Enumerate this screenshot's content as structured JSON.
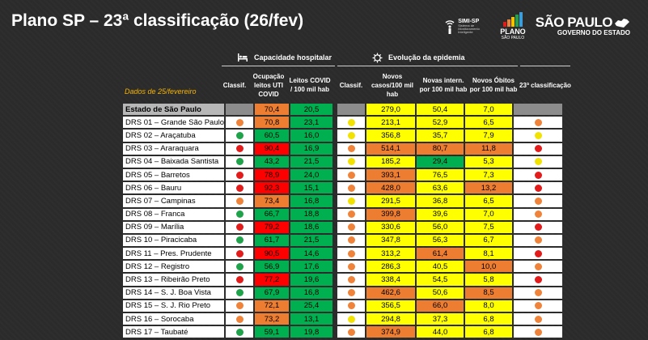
{
  "title": "Plano SP – 23ª classificação (26/fev)",
  "logos": {
    "simi_name": "SIMI-SP",
    "simi_sub": "Sistema de Monitoramento Inteligente",
    "plano_title": "PLANO",
    "plano_sub": "SÃO PAULO",
    "gov_title": "SÃO PAULO",
    "gov_sub": "GOVERNO DO ESTADO"
  },
  "sections": {
    "capacity": "Capacidade hospitalar",
    "evolution": "Evolução da epidemia"
  },
  "date_note": "Dados de 25/fevereiro",
  "headers": {
    "classif1": "Classif.",
    "occupancy": "Ocupação leitos UTI COVID",
    "beds": "Leitos COVID / 100 mil hab",
    "classif2": "Classif.",
    "cases": "Novos casos/100 mil hab",
    "intern": "Novas intern. por 100 mil hab",
    "deaths": "Novos Óbitos por 100 mil hab",
    "class23": "23ª classificação"
  },
  "colors": {
    "red": "#ff0000",
    "orange": "#ed7d31",
    "yellow": "#ffff00",
    "green": "#00b050",
    "white": "#ffffff",
    "dot_red": "#e31b1b",
    "dot_orange": "#f0833a",
    "dot_yellow": "#f2e200",
    "dot_green": "#1fa34a"
  },
  "state_row": {
    "name": "Estado de São Paulo",
    "occupancy": {
      "value": "70,4",
      "color": "orange"
    },
    "beds": {
      "value": "20,5",
      "color": "green"
    },
    "cases": {
      "value": "279,0",
      "color": "yellow"
    },
    "intern": {
      "value": "50,4",
      "color": "yellow"
    },
    "deaths": {
      "value": "7,0",
      "color": "yellow"
    }
  },
  "rows": [
    {
      "name": "DRS 01 – Grande São Paulo",
      "c1": "orange",
      "occ": [
        "70,8",
        "orange"
      ],
      "beds": [
        "23,1",
        "green"
      ],
      "c2": "yellow",
      "cases": [
        "213,1",
        "yellow"
      ],
      "intern": [
        "52,9",
        "yellow"
      ],
      "deaths": [
        "6,5",
        "yellow"
      ],
      "c23": "orange"
    },
    {
      "name": "DRS 02 – Araçatuba",
      "c1": "green",
      "occ": [
        "60,5",
        "green"
      ],
      "beds": [
        "16,0",
        "green"
      ],
      "c2": "yellow",
      "cases": [
        "356,8",
        "yellow"
      ],
      "intern": [
        "35,7",
        "yellow"
      ],
      "deaths": [
        "7,9",
        "yellow"
      ],
      "c23": "yellow"
    },
    {
      "name": "DRS 03 – Araraquara",
      "c1": "red",
      "occ": [
        "90,4",
        "red"
      ],
      "beds": [
        "16,9",
        "green"
      ],
      "c2": "orange",
      "cases": [
        "514,1",
        "orange"
      ],
      "intern": [
        "80,7",
        "orange"
      ],
      "deaths": [
        "11,8",
        "orange"
      ],
      "c23": "red"
    },
    {
      "name": "DRS 04 – Baixada Santista",
      "c1": "green",
      "occ": [
        "43,2",
        "green"
      ],
      "beds": [
        "21,5",
        "green"
      ],
      "c2": "yellow",
      "cases": [
        "185,2",
        "yellow"
      ],
      "intern": [
        "29,4",
        "green"
      ],
      "deaths": [
        "5,3",
        "yellow"
      ],
      "c23": "yellow"
    },
    {
      "name": "DRS 05 – Barretos",
      "c1": "red",
      "occ": [
        "78,9",
        "red"
      ],
      "beds": [
        "24,0",
        "green"
      ],
      "c2": "orange",
      "cases": [
        "393,1",
        "orange"
      ],
      "intern": [
        "76,5",
        "yellow"
      ],
      "deaths": [
        "7,3",
        "yellow"
      ],
      "c23": "red"
    },
    {
      "name": "DRS 06 – Bauru",
      "c1": "red",
      "occ": [
        "92,3",
        "red"
      ],
      "beds": [
        "15,1",
        "green"
      ],
      "c2": "orange",
      "cases": [
        "428,0",
        "orange"
      ],
      "intern": [
        "63,6",
        "yellow"
      ],
      "deaths": [
        "13,2",
        "orange"
      ],
      "c23": "red"
    },
    {
      "name": "DRS 07 – Campinas",
      "c1": "orange",
      "occ": [
        "73,4",
        "orange"
      ],
      "beds": [
        "16,8",
        "green"
      ],
      "c2": "yellow",
      "cases": [
        "291,5",
        "yellow"
      ],
      "intern": [
        "36,8",
        "yellow"
      ],
      "deaths": [
        "6,5",
        "yellow"
      ],
      "c23": "orange"
    },
    {
      "name": "DRS 08 – Franca",
      "c1": "green",
      "occ": [
        "66,7",
        "green"
      ],
      "beds": [
        "18,8",
        "green"
      ],
      "c2": "orange",
      "cases": [
        "399,8",
        "orange"
      ],
      "intern": [
        "39,6",
        "yellow"
      ],
      "deaths": [
        "7,0",
        "yellow"
      ],
      "c23": "orange"
    },
    {
      "name": "DRS 09 – Marília",
      "c1": "red",
      "occ": [
        "79,2",
        "red"
      ],
      "beds": [
        "18,6",
        "green"
      ],
      "c2": "orange",
      "cases": [
        "330,6",
        "yellow"
      ],
      "intern": [
        "56,0",
        "yellow"
      ],
      "deaths": [
        "7,5",
        "yellow"
      ],
      "c23": "red"
    },
    {
      "name": "DRS 10 – Piracicaba",
      "c1": "green",
      "occ": [
        "61,7",
        "green"
      ],
      "beds": [
        "21,5",
        "green"
      ],
      "c2": "orange",
      "cases": [
        "347,8",
        "yellow"
      ],
      "intern": [
        "56,3",
        "yellow"
      ],
      "deaths": [
        "6,7",
        "yellow"
      ],
      "c23": "orange"
    },
    {
      "name": "DRS 11 – Pres. Prudente",
      "c1": "red",
      "occ": [
        "90,5",
        "red"
      ],
      "beds": [
        "14,6",
        "green"
      ],
      "c2": "orange",
      "cases": [
        "313,2",
        "yellow"
      ],
      "intern": [
        "61,4",
        "orange"
      ],
      "deaths": [
        "8,1",
        "yellow"
      ],
      "c23": "red"
    },
    {
      "name": "DRS 12 – Registro",
      "c1": "green",
      "occ": [
        "56,9",
        "green"
      ],
      "beds": [
        "17,6",
        "green"
      ],
      "c2": "orange",
      "cases": [
        "286,3",
        "yellow"
      ],
      "intern": [
        "40,5",
        "yellow"
      ],
      "deaths": [
        "10,0",
        "orange"
      ],
      "c23": "orange"
    },
    {
      "name": "DRS 13 – Ribeirão Preto",
      "c1": "red",
      "occ": [
        "77,2",
        "red"
      ],
      "beds": [
        "19,6",
        "green"
      ],
      "c2": "orange",
      "cases": [
        "338,4",
        "yellow"
      ],
      "intern": [
        "54,5",
        "yellow"
      ],
      "deaths": [
        "5,8",
        "yellow"
      ],
      "c23": "red"
    },
    {
      "name": "DRS 14 – S. J. Boa Vista",
      "c1": "green",
      "occ": [
        "67,9",
        "green"
      ],
      "beds": [
        "16,8",
        "green"
      ],
      "c2": "orange",
      "cases": [
        "462,6",
        "orange"
      ],
      "intern": [
        "50,6",
        "yellow"
      ],
      "deaths": [
        "8,5",
        "orange"
      ],
      "c23": "orange"
    },
    {
      "name": "DRS 15 – S. J. Rio Preto",
      "c1": "orange",
      "occ": [
        "72,1",
        "orange"
      ],
      "beds": [
        "25,4",
        "green"
      ],
      "c2": "orange",
      "cases": [
        "356,5",
        "yellow"
      ],
      "intern": [
        "66,0",
        "orange"
      ],
      "deaths": [
        "8,0",
        "yellow"
      ],
      "c23": "orange"
    },
    {
      "name": "DRS 16 – Sorocaba",
      "c1": "orange",
      "occ": [
        "73,2",
        "orange"
      ],
      "beds": [
        "13,1",
        "green"
      ],
      "c2": "yellow",
      "cases": [
        "294,8",
        "yellow"
      ],
      "intern": [
        "37,3",
        "yellow"
      ],
      "deaths": [
        "6,8",
        "yellow"
      ],
      "c23": "orange"
    },
    {
      "name": "DRS 17 – Taubaté",
      "c1": "green",
      "occ": [
        "59,1",
        "green"
      ],
      "beds": [
        "19,8",
        "green"
      ],
      "c2": "orange",
      "cases": [
        "374,9",
        "orange"
      ],
      "intern": [
        "44,0",
        "yellow"
      ],
      "deaths": [
        "6,8",
        "yellow"
      ],
      "c23": "orange"
    }
  ]
}
